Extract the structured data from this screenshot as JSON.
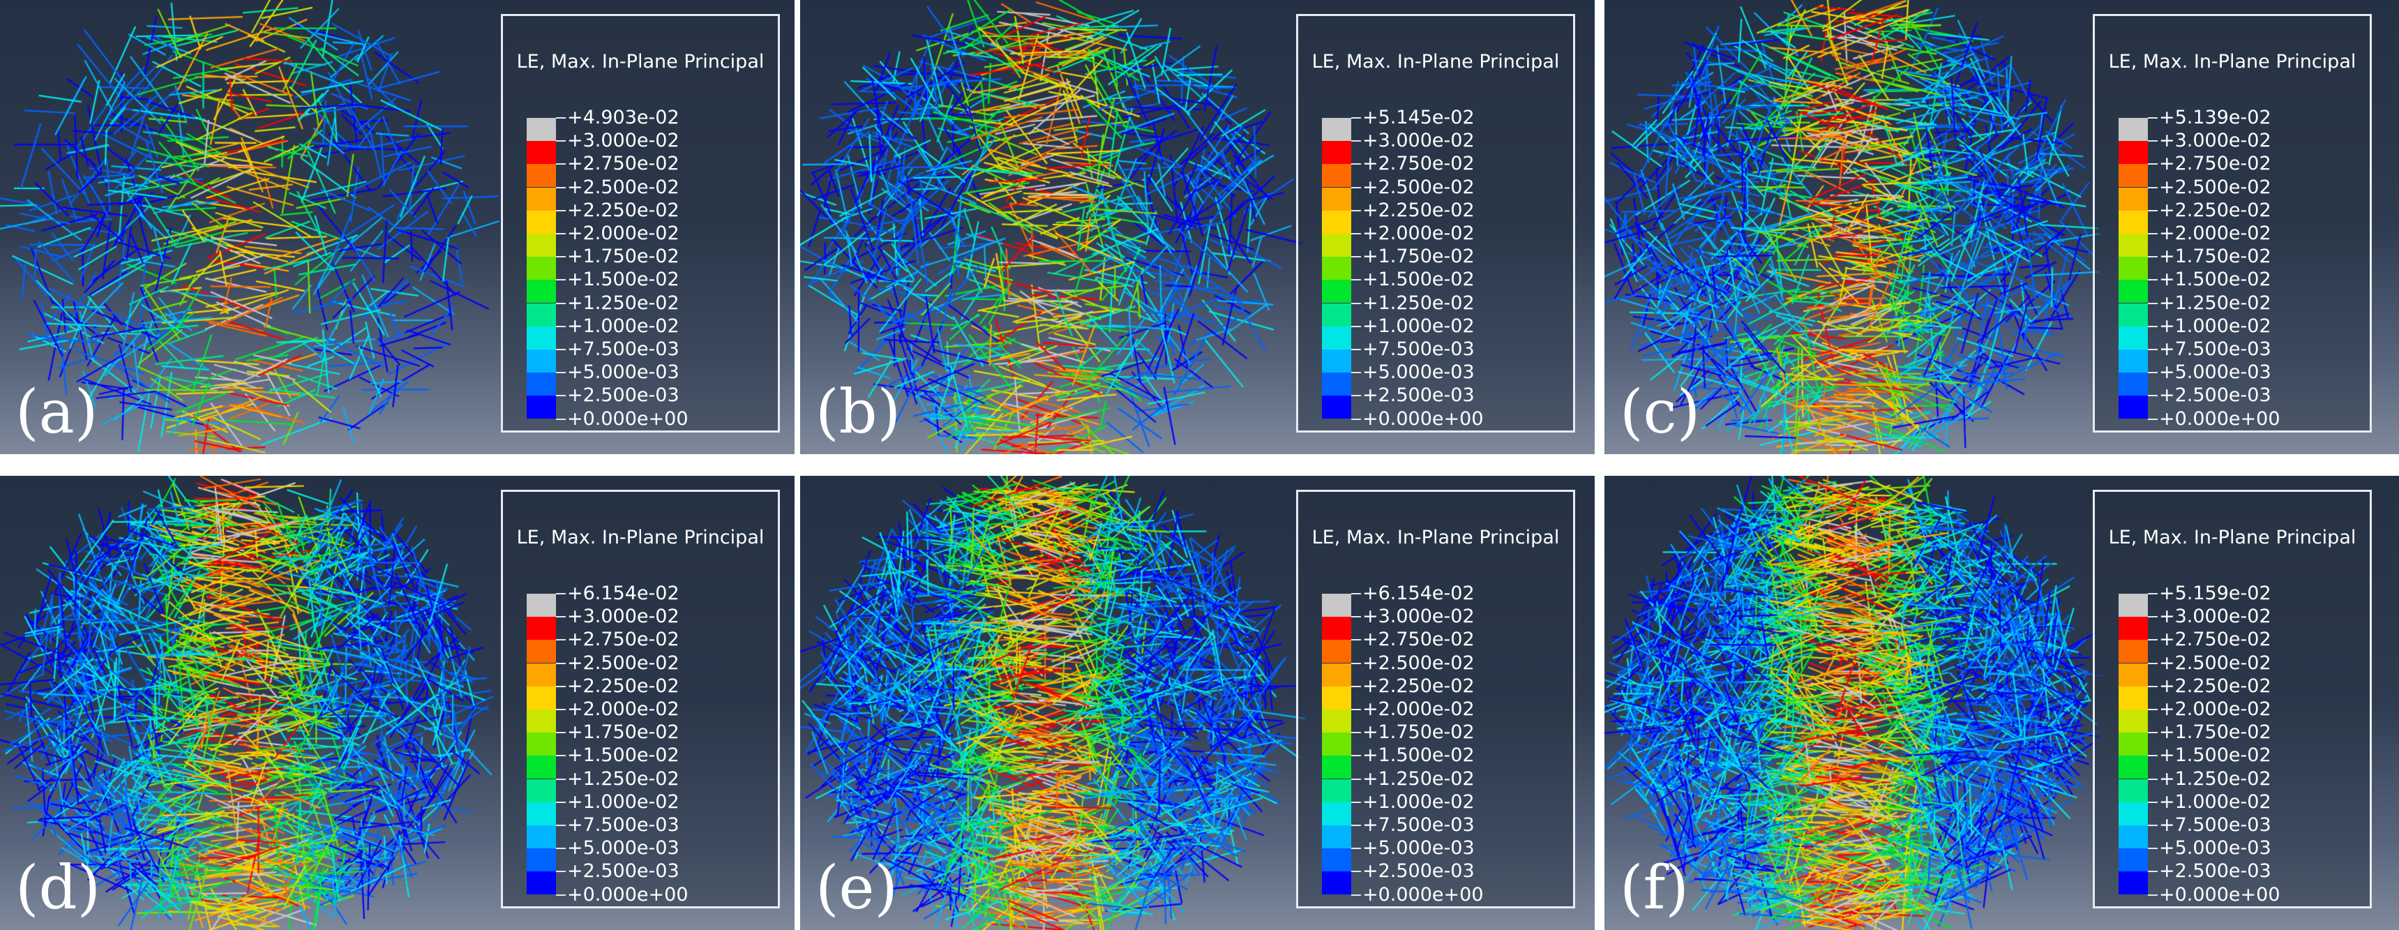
{
  "legend_title": "LE, Max. In-Plane Principal",
  "colors": [
    "#c8c8c8",
    "#ff0000",
    "#ff6a00",
    "#ffa500",
    "#ffd400",
    "#c8e600",
    "#6ee600",
    "#00e62e",
    "#00e68c",
    "#00e6e6",
    "#00b4ff",
    "#0064ff",
    "#0000ff"
  ],
  "tick_values_common": [
    "+3.000e-02",
    "+2.750e-02",
    "+2.500e-02",
    "+2.250e-02",
    "+2.000e-02",
    "+1.750e-02",
    "+1.500e-02",
    "+1.250e-02",
    "+1.000e-02",
    "+7.500e-03",
    "+5.000e-03",
    "+2.500e-03",
    "+0.000e+00"
  ],
  "panels": [
    {
      "label": "(a)",
      "max_value": "+4.903e-02",
      "density": 1
    },
    {
      "label": "(b)",
      "max_value": "+5.145e-02",
      "density": 2
    },
    {
      "label": "(c)",
      "max_value": "+5.139e-02",
      "density": 3
    },
    {
      "label": "(d)",
      "max_value": "+6.154e-02",
      "density": 4
    },
    {
      "label": "(e)",
      "max_value": "+6.154e-02",
      "density": 5
    },
    {
      "label": "(f)",
      "max_value": "+5.159e-02",
      "density": 6
    }
  ]
}
